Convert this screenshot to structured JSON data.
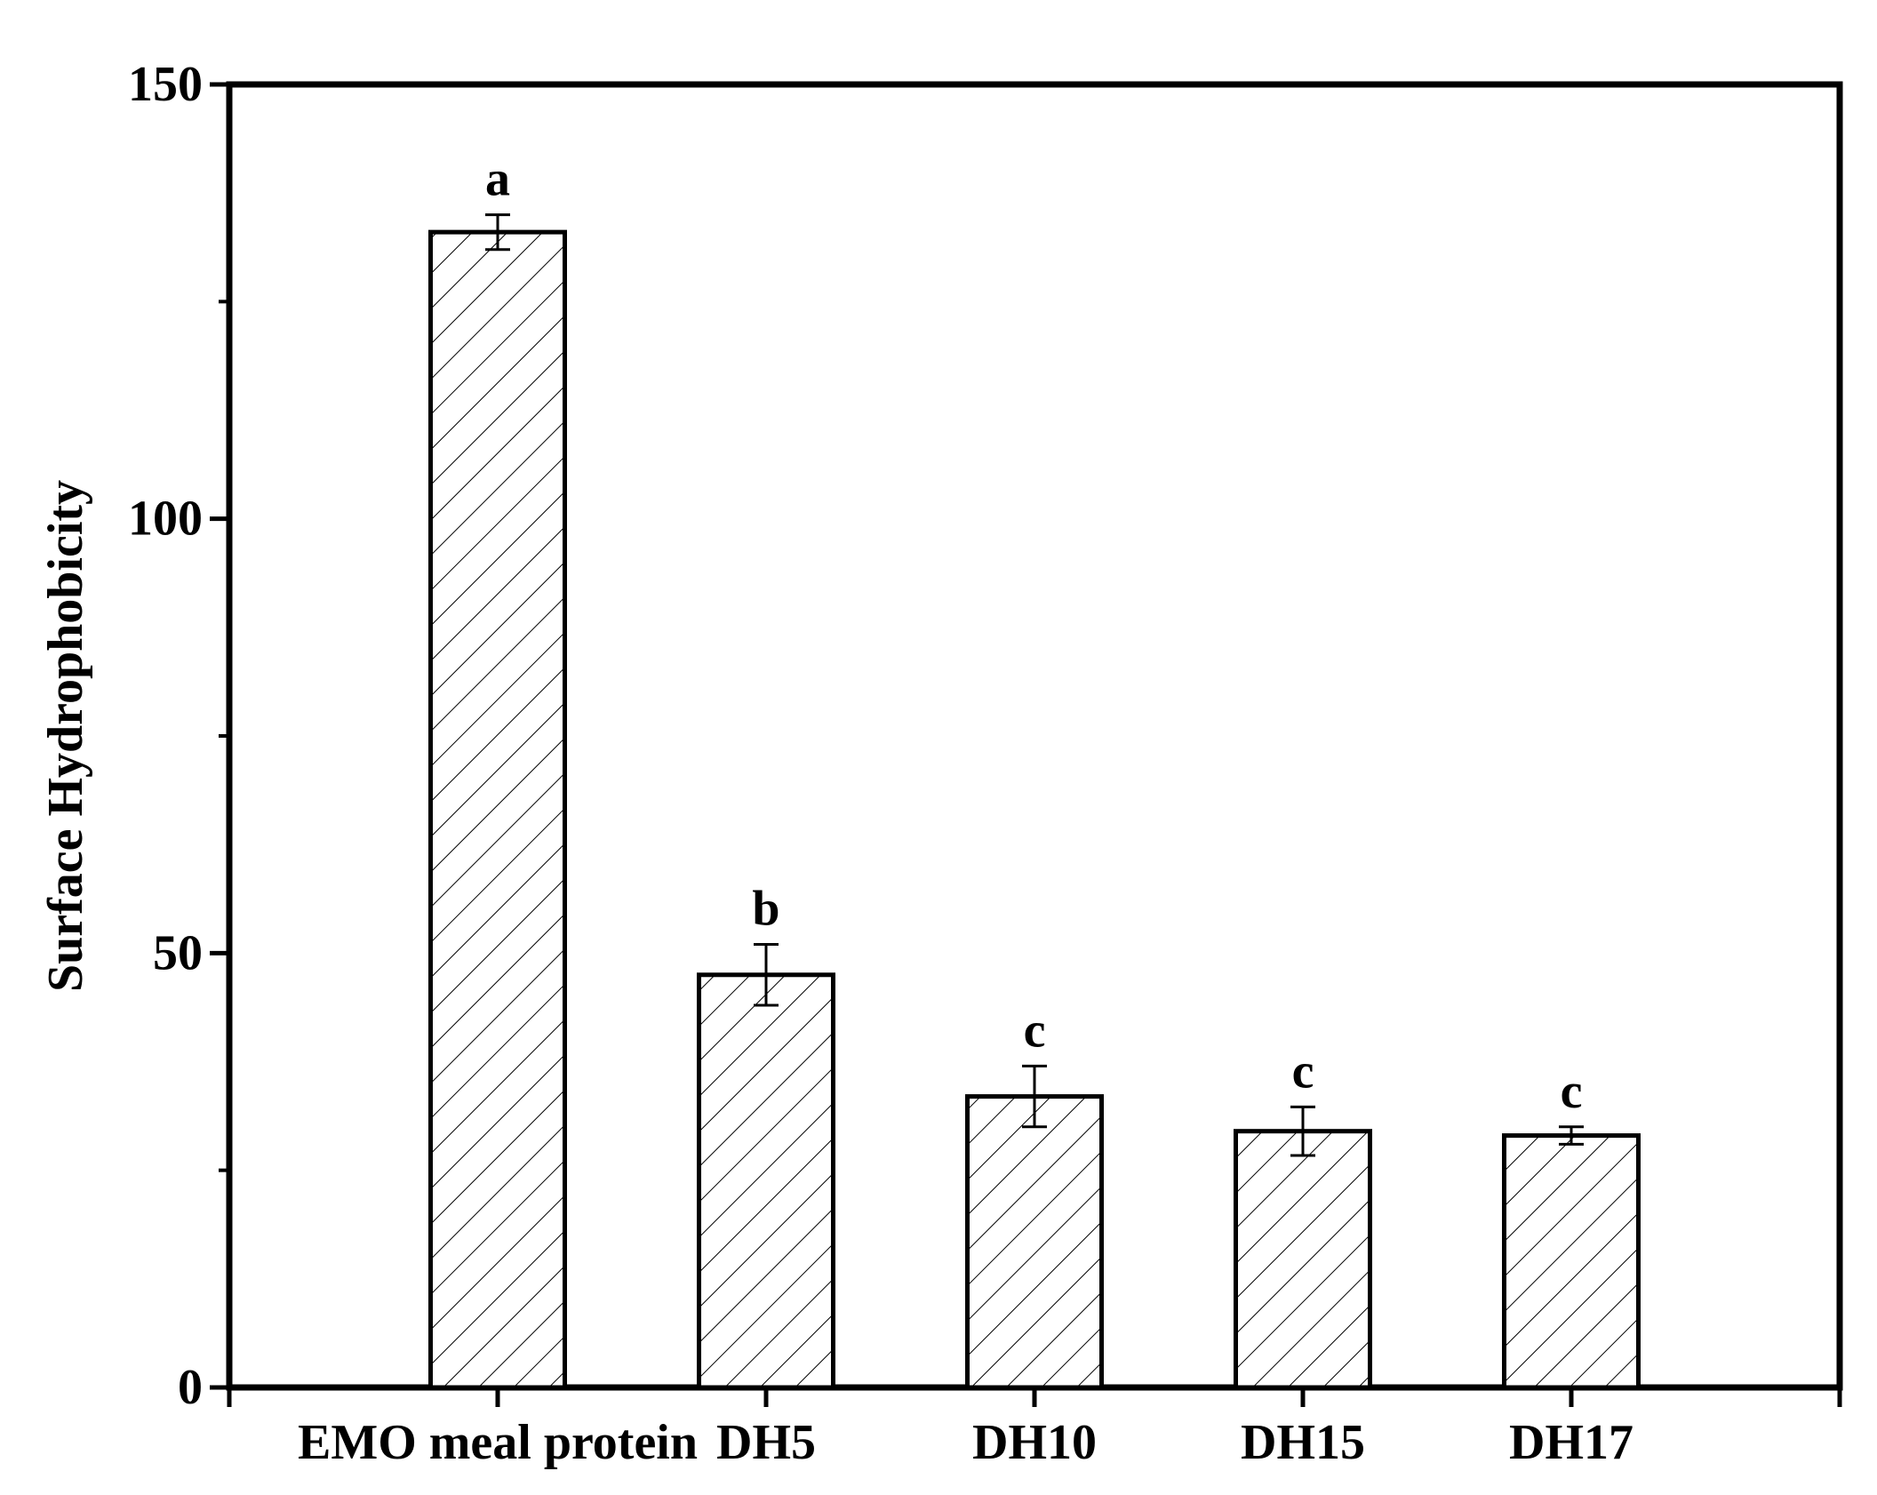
{
  "chart_data": {
    "type": "bar",
    "title": "",
    "xlabel": "",
    "ylabel": "Surface Hydrophobicity",
    "ylim": [
      0,
      150
    ],
    "yticks": [
      0,
      50,
      100,
      150
    ],
    "categories": [
      "EMO meal protein",
      "DH5",
      "DH10",
      "DH15",
      "DH17"
    ],
    "values": [
      133,
      47.5,
      33.5,
      29.5,
      29
    ],
    "errors": [
      2,
      3.5,
      3.5,
      2.8,
      1
    ],
    "significance": [
      "a",
      "b",
      "c",
      "c",
      "c"
    ],
    "grid": false,
    "bar_fill": "hatched",
    "colors": {
      "bar_stroke": "#000000",
      "bar_fill": "#ffffff",
      "error_bar": "#000000"
    }
  }
}
